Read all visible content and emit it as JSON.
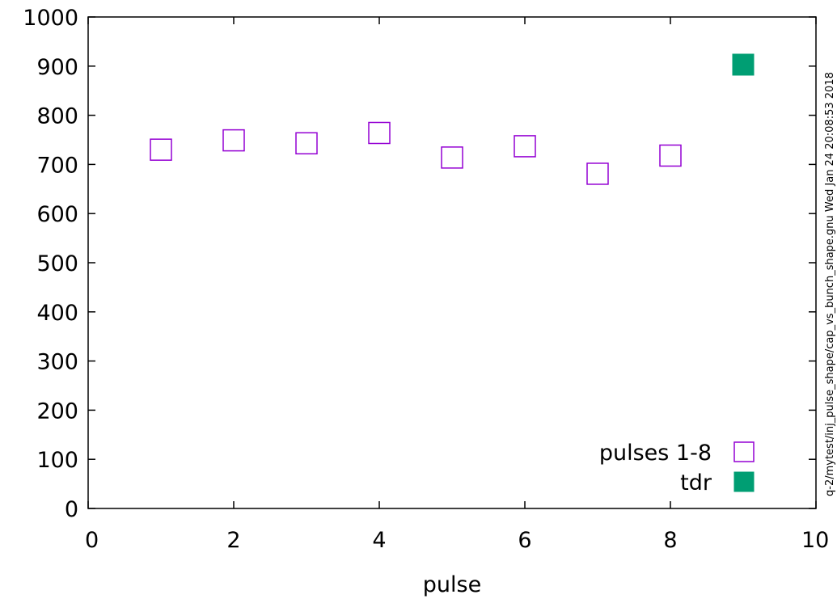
{
  "side_note": "q-2/mytest/inj_pulse_shape/cap_vs_bunch_shape.gnu    Wed Jan 24 20:08:53 2018",
  "colors": {
    "pulses": "#9400d3",
    "tdr": "#009e73",
    "axis": "#000000"
  },
  "chart_data": {
    "type": "scatter",
    "xlabel": "pulse",
    "ylabel": "",
    "xlim": [
      0,
      10
    ],
    "ylim": [
      0,
      1000
    ],
    "xticks": [
      "0",
      "2",
      "4",
      "6",
      "8",
      "10"
    ],
    "yticks": [
      "0",
      "100",
      "200",
      "300",
      "400",
      "500",
      "600",
      "700",
      "800",
      "900",
      "1000"
    ],
    "grid": false,
    "legend_position": "bottom-right",
    "series": [
      {
        "name": "pulses 1-8",
        "marker": "open-square",
        "points": [
          {
            "x": 1,
            "y": 730
          },
          {
            "x": 2,
            "y": 749
          },
          {
            "x": 3,
            "y": 743
          },
          {
            "x": 4,
            "y": 764
          },
          {
            "x": 5,
            "y": 714
          },
          {
            "x": 6,
            "y": 737
          },
          {
            "x": 7,
            "y": 681
          },
          {
            "x": 8,
            "y": 718
          }
        ]
      },
      {
        "name": "tdr",
        "marker": "filled-square",
        "points": [
          {
            "x": 9,
            "y": 903
          }
        ]
      }
    ]
  }
}
